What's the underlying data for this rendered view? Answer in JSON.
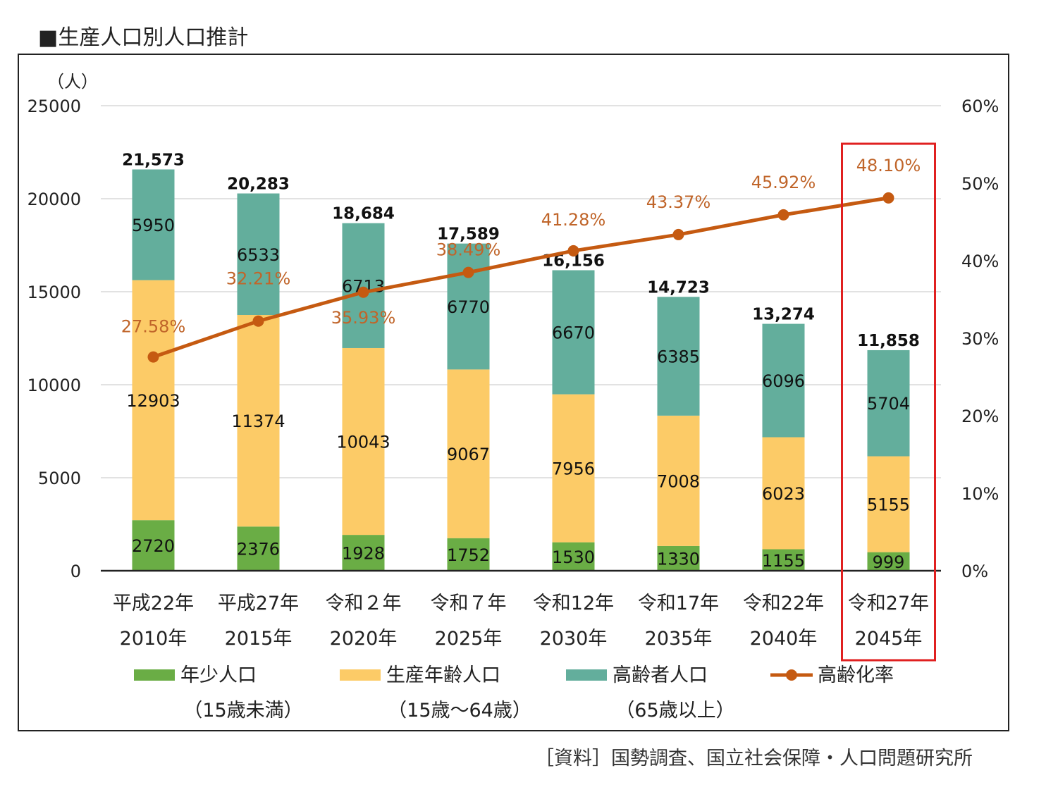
{
  "title": "■生産人口別人口推計",
  "source": "［資料］国勢調査、国立社会保障・人口問題研究所",
  "chart_data": {
    "type": "bar",
    "stacked": true,
    "ylabel_unit": "（人）",
    "ylim": [
      0,
      25000
    ],
    "yticks": [
      "25000",
      "20000",
      "15000",
      "10000",
      "5000",
      "0"
    ],
    "y2lim": [
      0,
      60
    ],
    "y2ticks": [
      "60%",
      "50%",
      "40%",
      "30%",
      "20%",
      "10%",
      "0%"
    ],
    "categories": [
      {
        "era": "平成22年",
        "year": "2010年"
      },
      {
        "era": "平成27年",
        "year": "2015年"
      },
      {
        "era": "令和２年",
        "year": "2020年"
      },
      {
        "era": "令和７年",
        "year": "2025年"
      },
      {
        "era": "令和12年",
        "year": "2030年"
      },
      {
        "era": "令和17年",
        "year": "2035年"
      },
      {
        "era": "令和22年",
        "year": "2040年"
      },
      {
        "era": "令和27年",
        "year": "2045年"
      }
    ],
    "series": [
      {
        "name": "年少人口",
        "sub": "（15歳未満）",
        "color": "#6aad45",
        "values": [
          2720,
          2376,
          1928,
          1752,
          1530,
          1330,
          1155,
          999
        ]
      },
      {
        "name": "生産年齢人口",
        "sub": "（15歳〜64歳）",
        "color": "#fccb67",
        "values": [
          12903,
          11374,
          10043,
          9067,
          7956,
          7008,
          6023,
          5155
        ]
      },
      {
        "name": "高齢者人口",
        "sub": "（65歳以上）",
        "color": "#63ae9c",
        "values": [
          5950,
          6533,
          6713,
          6770,
          6670,
          6385,
          6096,
          5704
        ]
      }
    ],
    "totals": [
      "21,573",
      "20,283",
      "18,684",
      "17,589",
      "16,156",
      "14,723",
      "13,274",
      "11,858"
    ],
    "line_series": {
      "name": "高齢化率",
      "color": "#c55a11",
      "label_color": "#c0652a",
      "values": [
        27.58,
        32.21,
        35.93,
        38.49,
        41.28,
        43.37,
        45.92,
        48.1
      ],
      "labels": [
        "27.58%",
        "32.21%",
        "35.93%",
        "38.49%",
        "41.28%",
        "43.37%",
        "45.92%",
        "48.10%"
      ]
    },
    "highlight": {
      "category_index": 7,
      "color": "#e02020"
    },
    "grid": true
  }
}
